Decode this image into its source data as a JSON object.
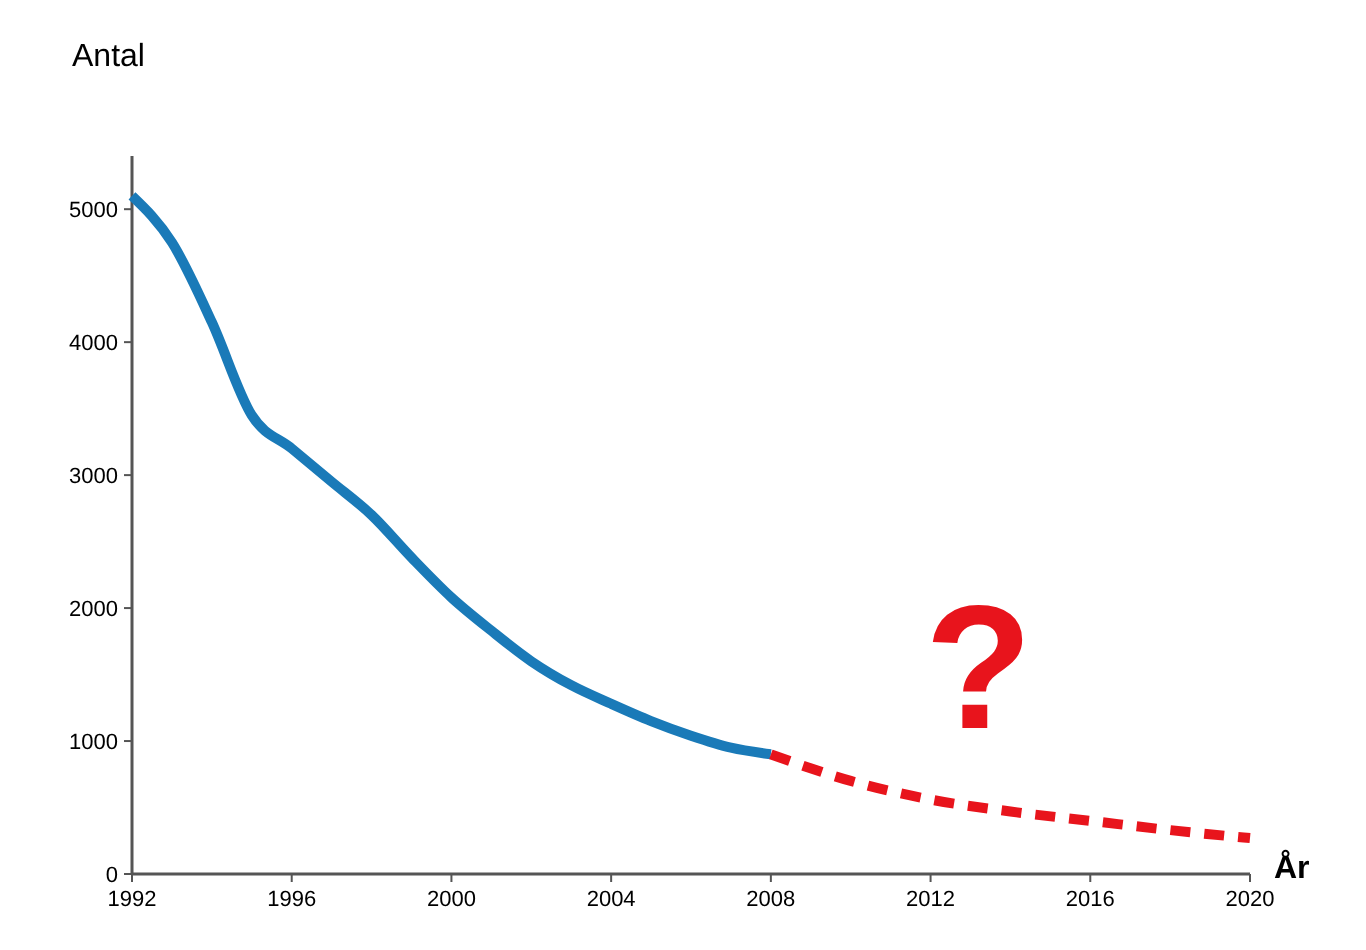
{
  "chart_data": {
    "type": "line",
    "xlabel": "År",
    "ylabel": "Antal",
    "xlim": [
      1992,
      2020
    ],
    "xticks": [
      1992,
      1996,
      2000,
      2004,
      2008,
      2012,
      2016,
      2020
    ],
    "ylim": [
      0,
      5400
    ],
    "yticks": [
      0,
      1000,
      2000,
      3000,
      4000,
      5000
    ],
    "annotations": [
      "?"
    ],
    "series": [
      {
        "color": "#1a7ab8",
        "line_style": "solid",
        "x": [
          1992,
          1993,
          1994,
          1995,
          1996,
          1997,
          1998,
          1999,
          2000,
          2001,
          2002,
          2003,
          2004,
          2005,
          2006,
          2007,
          2008
        ],
        "values": [
          5100,
          4750,
          4150,
          3450,
          3200,
          2950,
          2700,
          2380,
          2080,
          1830,
          1600,
          1420,
          1280,
          1150,
          1040,
          950,
          900
        ]
      },
      {
        "color": "#e8141c",
        "line_style": "dashed",
        "x": [
          2008,
          2010,
          2012,
          2014,
          2016,
          2018,
          2020
        ],
        "values": [
          900,
          700,
          560,
          470,
          400,
          330,
          270
        ]
      }
    ]
  }
}
